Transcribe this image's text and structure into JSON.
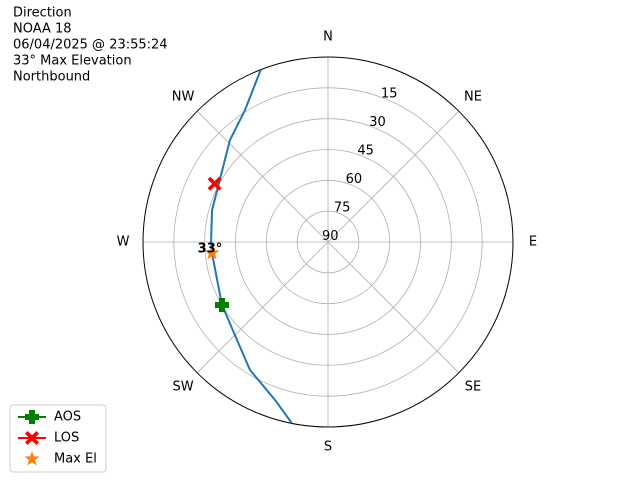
{
  "chart_data": {
    "type": "polar",
    "title_lines": [
      "Direction",
      "NOAA 18",
      "06/04/2025 @ 23:55:24",
      "33° Max Elevation",
      "Northbound"
    ],
    "theta_zero": "N",
    "theta_direction": "clockwise",
    "xlim": [
      0,
      360
    ],
    "xticks": [
      {
        "value": 0,
        "label": "N"
      },
      {
        "value": 45,
        "label": "NE"
      },
      {
        "value": 90,
        "label": "E"
      },
      {
        "value": 135,
        "label": "SE"
      },
      {
        "value": 180,
        "label": "S"
      },
      {
        "value": 225,
        "label": "SW"
      },
      {
        "value": 270,
        "label": "W"
      },
      {
        "value": 315,
        "label": "NW"
      }
    ],
    "ylim": [
      90,
      0
    ],
    "yticks": [
      90,
      75,
      60,
      45,
      30,
      15
    ],
    "grid": true,
    "legend": "lower left",
    "series": [
      {
        "color": "#1f77b4",
        "marker": "line",
        "x": [
          338.7,
          327.8,
          316.1,
          285.4,
          270,
          264.6,
          239.3,
          211.4,
          198.5,
          191.2
        ],
        "values": [
          0,
          14.2,
          21.2,
          31.5,
          33.1,
          33.3,
          30,
          17.1,
          8.9,
          0
        ]
      },
      {
        "name": "AOS",
        "color": "#008000",
        "marker": "plus",
        "x": [
          239.3
        ],
        "values": [
          30
        ]
      },
      {
        "name": "LOS",
        "color": "#ff0000",
        "marker": "x",
        "x": [
          297.2
        ],
        "values": [
          28
        ]
      },
      {
        "name": "Max El",
        "color": "#ff7f0e",
        "marker": "star",
        "x": [
          264.6
        ],
        "values": [
          33.3
        ]
      }
    ],
    "annotation": {
      "text": "33°",
      "x": 264.6,
      "y": 33.3
    }
  }
}
